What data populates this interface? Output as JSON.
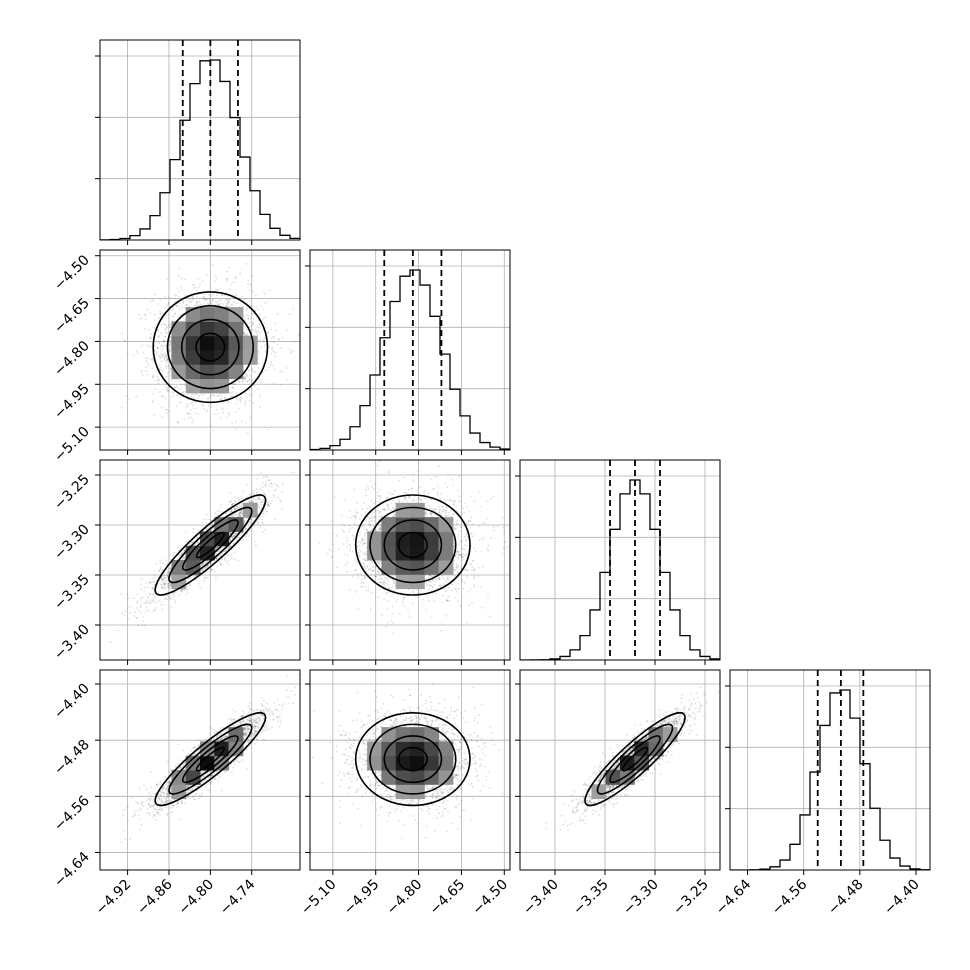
{
  "chart_data": {
    "type": "corner",
    "grid": true,
    "parameters": [
      {
        "mean": -4.8,
        "sd": 0.04,
        "range": [
          -4.96,
          -4.67
        ],
        "ticks": [
          -4.92,
          -4.86,
          -4.8,
          -4.74
        ],
        "tick_labels": [
          "−4.92",
          "−4.86",
          "−4.80",
          "−4.74"
        ],
        "quantiles": [
          -4.84,
          -4.8,
          -4.76
        ]
      },
      {
        "mean": -4.82,
        "sd": 0.1,
        "range": [
          -5.18,
          -4.48
        ],
        "ticks": [
          -5.1,
          -4.95,
          -4.8,
          -4.65,
          -4.5
        ],
        "tick_labels": [
          "−5.10",
          "−4.95",
          "−4.80",
          "−4.65",
          "−4.50"
        ],
        "quantiles": [
          -4.92,
          -4.82,
          -4.72
        ]
      },
      {
        "mean": -3.32,
        "sd": 0.025,
        "range": [
          -3.435,
          -3.235
        ],
        "ticks": [
          -3.4,
          -3.35,
          -3.3,
          -3.25
        ],
        "tick_labels": [
          "−3.40",
          "−3.35",
          "−3.30",
          "−3.25"
        ],
        "quantiles": [
          -3.345,
          -3.32,
          -3.295
        ]
      },
      {
        "mean": -4.507,
        "sd": 0.033,
        "range": [
          -4.665,
          -4.38
        ],
        "ticks": [
          -4.64,
          -4.56,
          -4.48,
          -4.4
        ],
        "tick_labels": [
          "−4.64",
          "−4.56",
          "−4.48",
          "−4.40"
        ],
        "quantiles": [
          -4.54,
          -4.507,
          -4.475
        ]
      }
    ],
    "correlations": [
      [
        1,
        3
      ],
      [
        2,
        3
      ],
      [
        3,
        4
      ]
    ],
    "correlation_values": [
      0.0,
      0.9,
      0.0,
      0.9,
      0.0,
      0.9
    ],
    "histogram_bins": 20,
    "scatter_samples": 2500,
    "line_color": "#000000",
    "quantile_line_style": "dashed"
  }
}
